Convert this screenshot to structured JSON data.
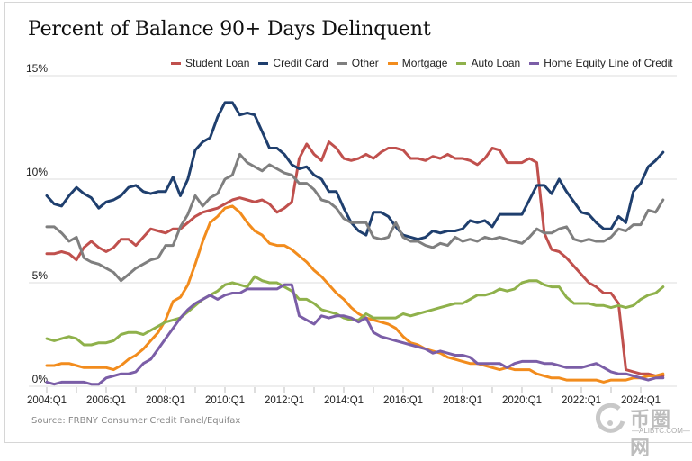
{
  "title": "Percent of Balance 90+ Days Delinquent",
  "source": "Source: FRBNY Consumer Credit Panel/Equifax",
  "watermark": {
    "text": "币圈网",
    "url": "—ALIBTC.COM—"
  },
  "chart_data": {
    "type": "line",
    "title": "Percent of Balance 90+ Days Delinquent",
    "xlabel": "",
    "ylabel": "",
    "ylim": [
      0,
      15
    ],
    "yticks": [
      0,
      5,
      10,
      15
    ],
    "ytick_labels": [
      "0%",
      "5%",
      "10%",
      "15%"
    ],
    "xtick_labels": [
      "2004:Q1",
      "2006:Q1",
      "2008:Q1",
      "2010:Q1",
      "2012:Q1",
      "2014:Q1",
      "2016:Q1",
      "2018:Q1",
      "2020:Q1",
      "2022:Q1",
      "2024:Q1"
    ],
    "x_start": "2004:Q1",
    "x_end": "2024:Q4",
    "grid": "horizontal",
    "legend_position": "top",
    "series": [
      {
        "name": "Student Loan",
        "color": "#c0504d",
        "values": [
          6.4,
          6.4,
          6.5,
          6.4,
          6.1,
          6.7,
          7.0,
          6.7,
          6.5,
          6.7,
          7.1,
          7.1,
          6.8,
          7.2,
          7.6,
          7.5,
          7.4,
          7.6,
          7.6,
          7.9,
          8.2,
          8.4,
          8.5,
          8.6,
          8.8,
          9.0,
          9.1,
          9.0,
          8.9,
          9.0,
          8.8,
          8.4,
          8.6,
          8.9,
          11.0,
          11.7,
          11.2,
          10.9,
          11.8,
          11.5,
          11.0,
          10.9,
          11.0,
          11.2,
          11.0,
          11.3,
          11.5,
          11.5,
          11.4,
          11.0,
          11.0,
          10.9,
          11.1,
          11.0,
          11.2,
          11.0,
          11.0,
          10.9,
          10.7,
          11.0,
          11.5,
          11.4,
          10.8,
          10.8,
          10.8,
          11.0,
          10.8,
          7.4,
          6.6,
          6.5,
          6.2,
          5.8,
          5.4,
          5.0,
          4.8,
          4.5,
          4.5,
          4.0,
          0.8,
          0.7,
          0.6,
          0.6,
          0.5,
          0.5
        ]
      },
      {
        "name": "Credit Card",
        "color": "#1f3f6e",
        "values": [
          9.2,
          8.8,
          8.7,
          9.2,
          9.6,
          9.3,
          9.1,
          8.6,
          8.9,
          9.0,
          9.2,
          9.6,
          9.7,
          9.4,
          9.3,
          9.4,
          9.4,
          10.1,
          9.2,
          10.0,
          11.4,
          11.8,
          12.0,
          13.0,
          13.7,
          13.7,
          13.1,
          13.2,
          13.1,
          12.3,
          11.5,
          11.5,
          11.2,
          10.7,
          10.5,
          10.6,
          10.2,
          10.0,
          9.4,
          9.4,
          8.6,
          7.9,
          7.5,
          7.3,
          8.4,
          8.4,
          8.2,
          7.7,
          7.3,
          7.2,
          7.1,
          7.2,
          7.5,
          7.4,
          7.5,
          7.5,
          7.6,
          8.0,
          7.9,
          8.0,
          7.7,
          8.3,
          8.3,
          8.3,
          8.3,
          9.0,
          9.7,
          9.7,
          9.3,
          10.0,
          9.4,
          8.9,
          8.4,
          8.3,
          7.9,
          7.6,
          7.6,
          8.2,
          7.9,
          9.4,
          9.8,
          10.6,
          10.9,
          11.3
        ]
      },
      {
        "name": "Other",
        "color": "#7f7f7f",
        "values": [
          7.7,
          7.7,
          7.4,
          7.0,
          7.2,
          6.2,
          6.0,
          5.9,
          5.7,
          5.5,
          5.1,
          5.4,
          5.7,
          5.9,
          6.1,
          6.2,
          6.8,
          6.8,
          7.7,
          8.3,
          9.2,
          8.7,
          9.1,
          9.3,
          10.0,
          10.2,
          11.2,
          10.8,
          10.6,
          10.4,
          10.7,
          10.5,
          10.3,
          10.2,
          9.8,
          9.8,
          9.5,
          9.0,
          8.9,
          8.6,
          8.1,
          7.9,
          7.9,
          7.9,
          7.2,
          7.1,
          7.2,
          7.9,
          7.2,
          7.0,
          7.0,
          6.8,
          6.7,
          6.9,
          6.8,
          7.2,
          7.0,
          7.1,
          7.0,
          7.2,
          7.1,
          7.2,
          7.1,
          7.0,
          6.9,
          7.2,
          7.6,
          7.4,
          7.4,
          7.6,
          7.7,
          7.1,
          7.0,
          7.1,
          7.0,
          7.0,
          7.2,
          7.6,
          7.5,
          7.8,
          7.8,
          8.5,
          8.4,
          9.0
        ]
      },
      {
        "name": "Mortgage",
        "color": "#f28c1d",
        "values": [
          1.0,
          1.0,
          1.1,
          1.1,
          1.0,
          0.9,
          0.9,
          0.9,
          0.9,
          0.8,
          1.0,
          1.3,
          1.5,
          1.8,
          2.2,
          2.6,
          3.2,
          4.1,
          4.3,
          4.9,
          5.9,
          7.0,
          7.9,
          8.2,
          8.6,
          8.7,
          8.4,
          7.9,
          7.5,
          7.3,
          6.9,
          6.8,
          6.8,
          6.6,
          6.3,
          6.0,
          5.6,
          5.3,
          4.9,
          4.5,
          4.2,
          3.8,
          3.5,
          3.3,
          3.2,
          3.1,
          3.0,
          2.8,
          2.4,
          2.1,
          2.0,
          1.8,
          1.7,
          1.6,
          1.4,
          1.3,
          1.2,
          1.1,
          1.1,
          1.0,
          0.9,
          0.8,
          0.9,
          0.8,
          0.8,
          0.8,
          0.6,
          0.5,
          0.4,
          0.4,
          0.3,
          0.3,
          0.3,
          0.3,
          0.3,
          0.2,
          0.3,
          0.3,
          0.3,
          0.4,
          0.4,
          0.5,
          0.5,
          0.6
        ]
      },
      {
        "name": "Auto Loan",
        "color": "#8fb14b",
        "values": [
          2.3,
          2.2,
          2.3,
          2.4,
          2.3,
          2.0,
          2.0,
          2.1,
          2.1,
          2.2,
          2.5,
          2.6,
          2.6,
          2.5,
          2.7,
          2.9,
          3.1,
          3.2,
          3.3,
          3.6,
          3.9,
          4.2,
          4.4,
          4.6,
          4.9,
          5.0,
          4.9,
          4.8,
          5.3,
          5.1,
          5.0,
          5.0,
          4.8,
          4.6,
          4.2,
          4.2,
          4.0,
          3.7,
          3.6,
          3.5,
          3.3,
          3.2,
          3.2,
          3.5,
          3.3,
          3.3,
          3.3,
          3.3,
          3.5,
          3.4,
          3.5,
          3.6,
          3.7,
          3.8,
          3.9,
          4.0,
          4.0,
          4.2,
          4.4,
          4.4,
          4.5,
          4.7,
          4.6,
          4.7,
          5.0,
          5.1,
          5.1,
          4.9,
          4.8,
          4.8,
          4.3,
          4.0,
          4.0,
          4.0,
          3.9,
          3.9,
          3.8,
          3.9,
          3.8,
          3.9,
          4.2,
          4.4,
          4.5,
          4.8
        ]
      },
      {
        "name": "Home Equity Line of Credit",
        "color": "#7b5ea7",
        "values": [
          0.2,
          0.1,
          0.2,
          0.2,
          0.2,
          0.2,
          0.1,
          0.1,
          0.4,
          0.5,
          0.6,
          0.6,
          0.7,
          1.1,
          1.3,
          1.8,
          2.3,
          2.8,
          3.3,
          3.7,
          4.0,
          4.2,
          4.4,
          4.2,
          4.4,
          4.5,
          4.5,
          4.7,
          4.7,
          4.7,
          4.7,
          4.7,
          4.9,
          4.9,
          3.4,
          3.2,
          3.0,
          3.4,
          3.3,
          3.4,
          3.4,
          3.3,
          3.1,
          3.3,
          2.6,
          2.4,
          2.3,
          2.2,
          2.1,
          2.0,
          1.9,
          1.8,
          1.6,
          1.7,
          1.6,
          1.5,
          1.5,
          1.4,
          1.1,
          1.1,
          1.1,
          1.1,
          0.9,
          1.1,
          1.2,
          1.2,
          1.2,
          1.1,
          1.1,
          1.0,
          0.9,
          0.9,
          0.9,
          1.0,
          1.1,
          0.9,
          0.7,
          0.6,
          0.6,
          0.5,
          0.4,
          0.3,
          0.4,
          0.4
        ]
      }
    ]
  }
}
